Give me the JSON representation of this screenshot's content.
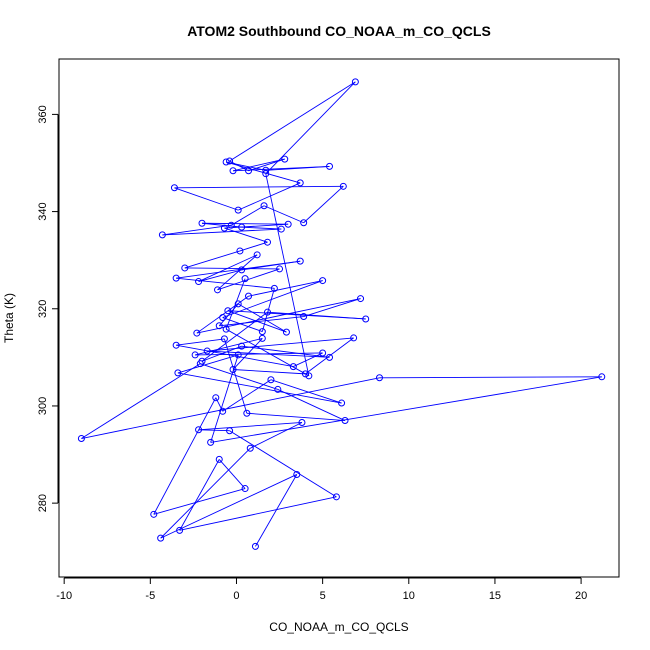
{
  "chart_data": {
    "type": "line",
    "title": "ATOM2 Southbound CO_NOAA_m_CO_QCLS",
    "xlabel": "CO_NOAA_m_CO_QCLS",
    "ylabel": "Theta (K)",
    "xlim": [
      -10.3,
      22.2
    ],
    "ylim": [
      264.8,
      371.4
    ],
    "x_ticks": [
      -10,
      -5,
      0,
      5,
      10,
      15,
      20
    ],
    "y_ticks": [
      280,
      300,
      320,
      340,
      360
    ],
    "x_tick_labels": [
      "-10",
      "-5",
      "0",
      "5",
      "10",
      "15",
      "20"
    ],
    "y_tick_labels": [
      "280",
      "300",
      "320",
      "340",
      "360"
    ],
    "series_color": "#0000ff",
    "grid": false,
    "legend": "none",
    "series": [
      {
        "markers": "open-circle",
        "points": [
          [
            1.1,
            271.1
          ],
          [
            3.5,
            285.9
          ],
          [
            -4.4,
            272.8
          ],
          [
            0.8,
            291.3
          ],
          [
            3.8,
            296.6
          ],
          [
            -2.2,
            295.1
          ],
          [
            -0.4,
            294.9
          ],
          [
            5.8,
            281.3
          ],
          [
            -3.3,
            274.4
          ],
          [
            -1.0,
            289.0
          ],
          [
            0.5,
            283.0
          ],
          [
            -4.8,
            277.7
          ],
          [
            -1.2,
            301.7
          ],
          [
            -0.8,
            298.9
          ],
          [
            2.0,
            305.4
          ],
          [
            6.1,
            300.6
          ],
          [
            -3.4,
            306.8
          ],
          [
            0.1,
            310.5
          ],
          [
            -1.5,
            292.5
          ],
          [
            21.2,
            306.0
          ],
          [
            8.3,
            305.8
          ],
          [
            -9.0,
            293.3
          ],
          [
            -2.1,
            308.7
          ],
          [
            2.4,
            303.4
          ],
          [
            6.3,
            297.0
          ],
          [
            0.6,
            298.5
          ],
          [
            -0.7,
            313.8
          ],
          [
            -3.5,
            312.5
          ],
          [
            3.3,
            308.1
          ],
          [
            5.0,
            310.9
          ],
          [
            -2.4,
            310.5
          ],
          [
            1.5,
            313.9
          ],
          [
            -0.2,
            307.5
          ],
          [
            4.0,
            306.6
          ],
          [
            6.8,
            314.0
          ],
          [
            -1.7,
            311.3
          ],
          [
            5.4,
            310.0
          ],
          [
            0.3,
            312.3
          ],
          [
            -2.0,
            309.2
          ],
          [
            1.8,
            319.3
          ],
          [
            7.5,
            317.9
          ],
          [
            -0.5,
            319.6
          ],
          [
            2.9,
            315.2
          ],
          [
            0.1,
            321.0
          ],
          [
            -1.0,
            316.5
          ],
          [
            3.9,
            318.4
          ],
          [
            7.2,
            322.1
          ],
          [
            -2.3,
            315.0
          ],
          [
            0.7,
            322.6
          ],
          [
            5.0,
            325.8
          ],
          [
            -0.8,
            318.2
          ],
          [
            1.5,
            315.3
          ],
          [
            2.2,
            324.2
          ],
          [
            -3.5,
            326.3
          ],
          [
            3.7,
            329.8
          ],
          [
            0.3,
            328.0
          ],
          [
            -2.2,
            325.6
          ],
          [
            1.2,
            331.1
          ],
          [
            -1.1,
            323.9
          ],
          [
            2.5,
            328.2
          ],
          [
            -3.0,
            328.4
          ],
          [
            0.2,
            331.9
          ],
          [
            1.8,
            333.7
          ],
          [
            -0.7,
            336.6
          ],
          [
            3.0,
            337.4
          ],
          [
            -2.0,
            337.6
          ],
          [
            0.3,
            336.8
          ],
          [
            2.6,
            336.4
          ],
          [
            -4.3,
            335.2
          ],
          [
            -0.3,
            337.2
          ],
          [
            1.6,
            341.2
          ],
          [
            3.9,
            337.7
          ],
          [
            6.2,
            345.2
          ],
          [
            -3.6,
            344.9
          ],
          [
            0.1,
            340.3
          ],
          [
            3.7,
            345.9
          ],
          [
            -0.6,
            350.2
          ],
          [
            1.7,
            348.5
          ],
          [
            5.4,
            349.3
          ],
          [
            -0.2,
            348.4
          ],
          [
            2.8,
            350.8
          ],
          [
            0.7,
            348.4
          ],
          [
            -0.4,
            350.4
          ],
          [
            6.9,
            366.7
          ],
          [
            1.7,
            347.8
          ],
          [
            4.2,
            306.2
          ],
          [
            -0.6,
            315.8
          ],
          [
            0.5,
            326.2
          ]
        ]
      }
    ]
  }
}
